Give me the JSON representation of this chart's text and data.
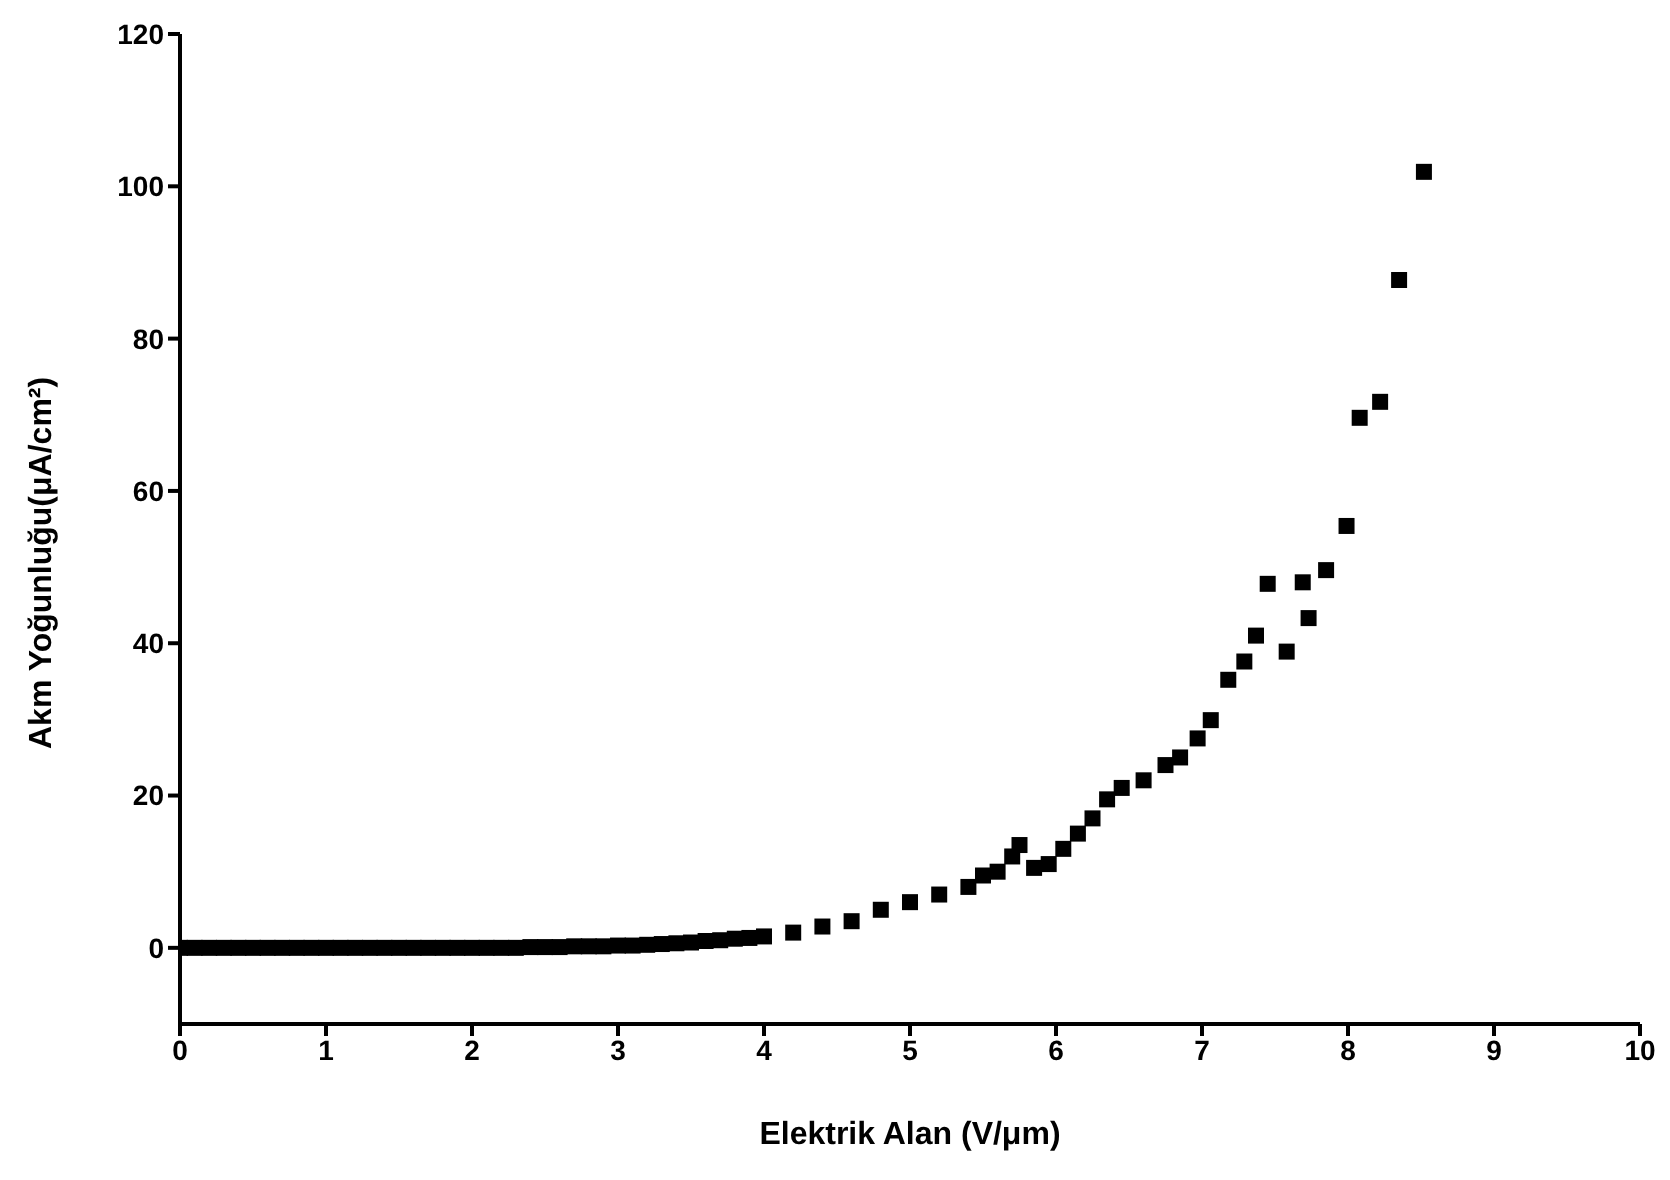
{
  "chart_data": {
    "type": "scatter",
    "xlabel": "Elektrik Alan (V/μm)",
    "ylabel": "Akm Yoğunluğu(μA/cm²)",
    "xlim": [
      0,
      10
    ],
    "xticks": [
      0,
      1,
      2,
      3,
      4,
      5,
      6,
      7,
      8,
      9,
      10
    ],
    "ylim": [
      -10,
      120
    ],
    "yticks": [
      0,
      20,
      40,
      60,
      80,
      100,
      120
    ],
    "grid": false,
    "marker": "square",
    "series": [
      {
        "color": "#000000",
        "x": [
          0,
          0.1,
          0.2,
          0.3,
          0.4,
          0.5,
          0.6,
          0.7,
          0.8,
          0.9,
          1.0,
          1.1,
          1.2,
          1.3,
          1.4,
          1.5,
          1.6,
          1.7,
          1.8,
          1.9,
          2.0,
          2.1,
          2.2,
          2.3,
          2.4,
          2.5,
          2.6,
          2.7,
          2.8,
          2.9,
          3.0,
          3.1,
          3.2,
          3.3,
          3.4,
          3.5,
          3.6,
          3.7,
          3.8,
          3.9,
          4.0,
          4.2,
          4.4,
          4.6,
          4.8,
          5.0,
          5.2,
          5.4,
          5.5,
          5.6,
          5.7,
          5.75,
          5.85,
          5.95,
          6.05,
          6.15,
          6.25,
          6.35,
          6.45,
          6.6,
          6.75,
          6.85,
          6.97,
          7.06,
          7.18,
          7.29,
          7.37,
          7.45,
          7.58,
          7.69,
          7.73,
          7.85,
          7.99,
          8.08,
          8.22,
          8.35,
          8.52
        ],
        "values": [
          0,
          0,
          0,
          0,
          0,
          0,
          0,
          0,
          0,
          0,
          0,
          0,
          0,
          0,
          0,
          0,
          0,
          0,
          0,
          0,
          0,
          0,
          0,
          0,
          0.1,
          0.1,
          0.1,
          0.2,
          0.2,
          0.2,
          0.3,
          0.3,
          0.4,
          0.5,
          0.6,
          0.7,
          0.9,
          1.0,
          1.2,
          1.3,
          1.5,
          2,
          2.8,
          3.5,
          5,
          6,
          7,
          8,
          9.5,
          10,
          12,
          13.5,
          10.5,
          11,
          13,
          15,
          17,
          19.5,
          21,
          22,
          24,
          25,
          27.5,
          29.9,
          35.2,
          37.6,
          41,
          47.8,
          38.9,
          48,
          43.3,
          49.6,
          55.4,
          69.6,
          71.7,
          87.7,
          101.9
        ]
      }
    ]
  }
}
